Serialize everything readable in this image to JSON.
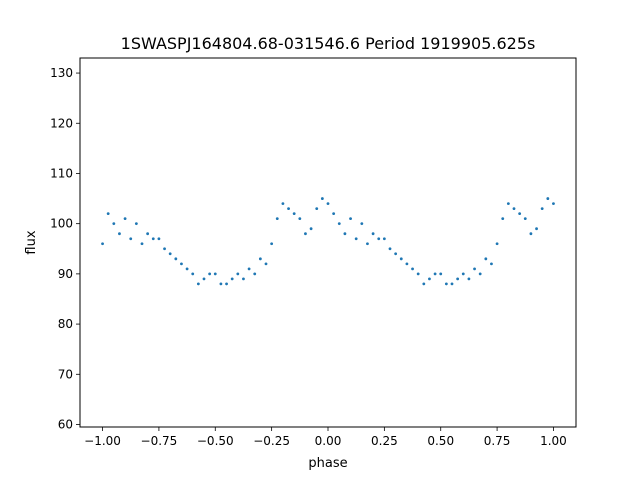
{
  "chart_data": {
    "type": "scatter",
    "title": "1SWASPJ164804.68-031546.6 Period 1919905.625s",
    "xlabel": "phase",
    "ylabel": "flux",
    "xlim": [
      -1.1,
      1.1
    ],
    "ylim": [
      59.5,
      133.0
    ],
    "x_ticks": [
      -1.0,
      -0.75,
      -0.5,
      -0.25,
      0.0,
      0.25,
      0.5,
      0.75,
      1.0
    ],
    "x_tick_labels": [
      "−1.00",
      "−0.75",
      "−0.50",
      "−0.25",
      "0.00",
      "0.25",
      "0.50",
      "0.75",
      "1.00"
    ],
    "y_ticks": [
      60,
      70,
      80,
      90,
      100,
      110,
      120,
      130
    ],
    "y_tick_labels": [
      "60",
      "70",
      "80",
      "90",
      "100",
      "110",
      "120",
      "130"
    ],
    "grid": false,
    "legend": "none",
    "marker_color": "#1f77b4",
    "series": [
      {
        "x": [
          -1.0,
          -0.975,
          -0.95,
          -0.925,
          -0.9,
          -0.875,
          -0.85,
          -0.825,
          -0.8,
          -0.775,
          -0.75,
          -0.725,
          -0.7,
          -0.675,
          -0.65,
          -0.625,
          -0.6,
          -0.575,
          -0.55,
          -0.525,
          -0.5,
          -0.475,
          -0.45,
          -0.425,
          -0.4,
          -0.375,
          -0.35,
          -0.325,
          -0.3,
          -0.275,
          -0.25,
          -0.225,
          -0.2,
          -0.175,
          -0.15,
          -0.125,
          -0.1,
          -0.075,
          -0.05,
          -0.025,
          0.0,
          0.025,
          0.05,
          0.075,
          0.1,
          0.125,
          0.15,
          0.175,
          0.2,
          0.225,
          0.25,
          0.275,
          0.3,
          0.325,
          0.35,
          0.375,
          0.4,
          0.425,
          0.45,
          0.475,
          0.5,
          0.525,
          0.55,
          0.575,
          0.6,
          0.625,
          0.65,
          0.675,
          0.7,
          0.725,
          0.75,
          0.775,
          0.8,
          0.825,
          0.85,
          0.875,
          0.9,
          0.925,
          0.95,
          0.975,
          1.0
        ],
        "y": [
          96,
          102,
          100,
          98,
          101,
          97,
          100,
          96,
          98,
          97,
          97,
          95,
          94,
          93,
          92,
          91,
          90,
          88,
          89,
          90,
          90,
          88,
          88,
          89,
          90,
          89,
          91,
          90,
          93,
          92,
          96,
          101,
          104,
          103,
          102,
          101,
          98,
          99,
          103,
          105,
          104,
          102,
          100,
          98,
          101,
          97,
          100,
          96,
          98,
          97,
          97,
          95,
          94,
          93,
          92,
          91,
          90,
          88,
          89,
          90,
          90,
          88,
          88,
          89,
          90,
          89,
          91,
          90,
          93,
          92,
          96,
          101,
          104,
          103,
          102,
          101,
          98,
          99,
          103,
          105,
          104
        ]
      }
    ]
  }
}
